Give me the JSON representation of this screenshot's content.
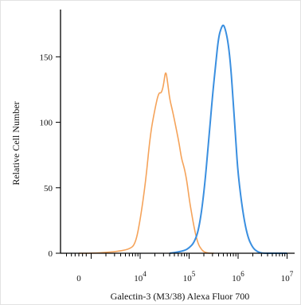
{
  "chart_data": {
    "type": "line",
    "title": "",
    "xlabel": "Galectin-3 (M3/38) Alexa Fluor 700",
    "ylabel": "Relative Cell Number",
    "x_scale": "biexponential",
    "x_tick_labels": [
      {
        "base": "0",
        "exp": "",
        "value": 0
      },
      {
        "base": "10",
        "exp": "4",
        "value": 10000
      },
      {
        "base": "10",
        "exp": "5",
        "value": 100000
      },
      {
        "base": "10",
        "exp": "6",
        "value": 1000000
      },
      {
        "base": "10",
        "exp": "7",
        "value": 10000000
      }
    ],
    "y_ticks": [
      0,
      50,
      100,
      150
    ],
    "ylim": [
      0,
      180
    ],
    "grid": false,
    "legend": "none",
    "series": [
      {
        "color": "#f5a35a",
        "x": [
          0,
          1000,
          3000,
          6000,
          8000,
          10000,
          13000,
          16000,
          20000,
          24000,
          27000,
          30000,
          33000,
          36000,
          40000,
          45000,
          50000,
          56000,
          63000,
          70000,
          80000,
          90000,
          100000,
          113000,
          126000,
          140000,
          158000,
          178000,
          200000,
          250000,
          320000
        ],
        "y": [
          0,
          0,
          1,
          3,
          7,
          25,
          55,
          90,
          110,
          123,
          122,
          128,
          140,
          132,
          118,
          110,
          102,
          93,
          83,
          72,
          65,
          55,
          42,
          30,
          20,
          12,
          6,
          3,
          1,
          0,
          0
        ]
      },
      {
        "color": "#3a8fe0",
        "x": [
          40000,
          60000,
          80000,
          100000,
          126000,
          158000,
          200000,
          250000,
          300000,
          350000,
          400000,
          450000,
          500000,
          560000,
          630000,
          710000,
          800000,
          900000,
          1000000,
          1260000,
          1580000,
          2000000,
          2500000,
          3200000,
          4000000,
          10000000
        ],
        "y": [
          0,
          1,
          2,
          4,
          8,
          18,
          45,
          85,
          120,
          145,
          165,
          172,
          175,
          170,
          160,
          142,
          115,
          85,
          60,
          30,
          12,
          4,
          1,
          0,
          0,
          0
        ]
      }
    ]
  }
}
